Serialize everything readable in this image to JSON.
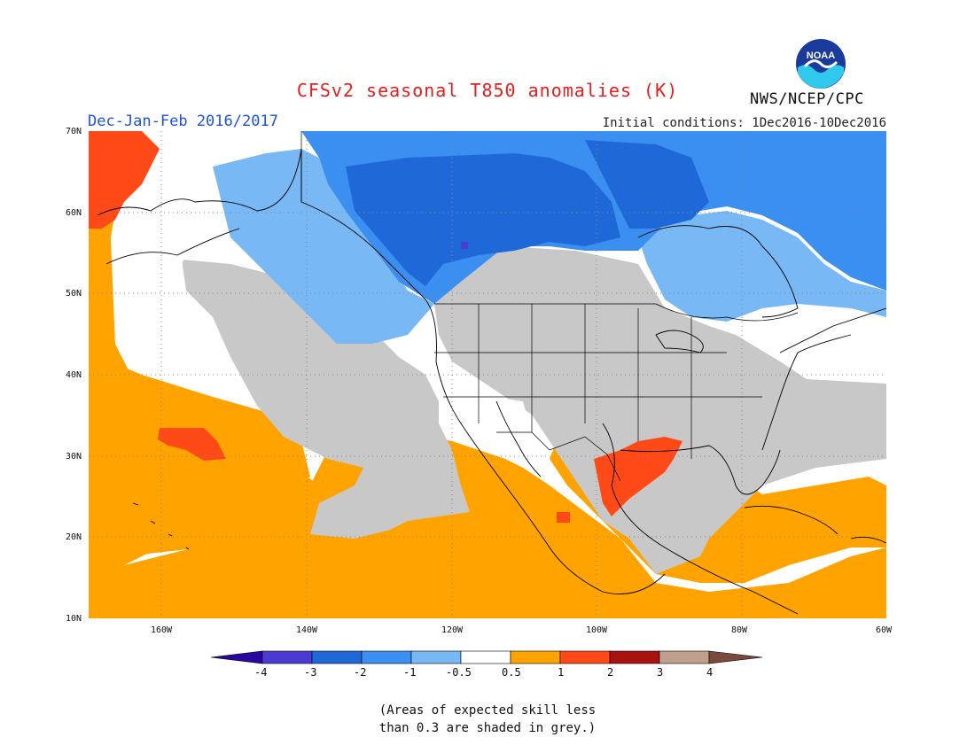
{
  "header": {
    "title": "CFSv2 seasonal T850 anomalies (K)",
    "agency": "NWS/NCEP/CPC",
    "logo_text": "NOAA",
    "season": "Dec-Jan-Feb 2016/2017",
    "initial_conditions": "Initial conditions: 1Dec2016-10Dec2016"
  },
  "map": {
    "projection": "lat-lon",
    "lat_range": [
      10,
      70
    ],
    "lon_range": [
      -170,
      -60
    ],
    "lat_labels": [
      "70N",
      "60N",
      "50N",
      "40N",
      "30N",
      "20N",
      "10N"
    ],
    "lon_labels": [
      "160W",
      "140W",
      "120W",
      "100W",
      "80W",
      "60W"
    ],
    "grid": "dotted"
  },
  "colorbar": {
    "labels": [
      "-4",
      "-3",
      "-2",
      "-1",
      "-0.5",
      "0.5",
      "1",
      "2",
      "3",
      "4"
    ],
    "colors": [
      "#2a07a0",
      "#4c3bd2",
      "#1f68d8",
      "#3b8ff0",
      "#78b8f4",
      "#ffffff",
      "#ffa300",
      "#ff4a18",
      "#a8120f",
      "#c09f8f",
      "#7a4a3c"
    ]
  },
  "colors": {
    "skill_mask_grey": "#c8c8c8",
    "coast": "#000000",
    "title_red": "#e0201e",
    "season_blue": "#1f52d8"
  },
  "footnote": {
    "line1": "(Areas of expected skill less",
    "line2": "than 0.3 are shaded in grey.)"
  }
}
